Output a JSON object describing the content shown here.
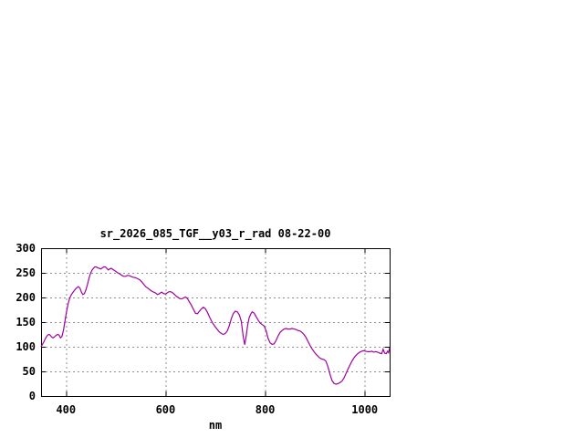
{
  "window": {
    "background_color": "#ffffff"
  },
  "chart": {
    "border_color": "#000000",
    "grid_color": "#909090",
    "text_color": "#000000"
  },
  "chart_data": {
    "type": "line",
    "title": "sr_2026_085_TGF__y03_r_rad 08-22-00",
    "xlabel": "nm",
    "ylabel": "",
    "xlim": [
      350,
      1050
    ],
    "ylim": [
      0,
      300
    ],
    "xticks": [
      400,
      600,
      800,
      1000
    ],
    "yticks": [
      0,
      50,
      100,
      150,
      200,
      250,
      300
    ],
    "grid": true,
    "legend": false,
    "series_color": "#a000a0",
    "points": [
      [
        350,
        100
      ],
      [
        353,
        105
      ],
      [
        356,
        111
      ],
      [
        359,
        117
      ],
      [
        362,
        122
      ],
      [
        365,
        125
      ],
      [
        368,
        124
      ],
      [
        371,
        120
      ],
      [
        374,
        118
      ],
      [
        377,
        120
      ],
      [
        380,
        123
      ],
      [
        383,
        125
      ],
      [
        386,
        124
      ],
      [
        389,
        118
      ],
      [
        392,
        121
      ],
      [
        395,
        134
      ],
      [
        398,
        152
      ],
      [
        401,
        170
      ],
      [
        404,
        186
      ],
      [
        407,
        197
      ],
      [
        410,
        204
      ],
      [
        413,
        209
      ],
      [
        416,
        213
      ],
      [
        419,
        217
      ],
      [
        422,
        220
      ],
      [
        425,
        222
      ],
      [
        428,
        219
      ],
      [
        431,
        211
      ],
      [
        434,
        206
      ],
      [
        437,
        208
      ],
      [
        440,
        215
      ],
      [
        443,
        226
      ],
      [
        446,
        238
      ],
      [
        449,
        248
      ],
      [
        452,
        255
      ],
      [
        455,
        259
      ],
      [
        458,
        262
      ],
      [
        461,
        262
      ],
      [
        464,
        260
      ],
      [
        467,
        259
      ],
      [
        470,
        258
      ],
      [
        473,
        260
      ],
      [
        476,
        262
      ],
      [
        479,
        262
      ],
      [
        482,
        259
      ],
      [
        485,
        256
      ],
      [
        488,
        258
      ],
      [
        491,
        259
      ],
      [
        494,
        257
      ],
      [
        497,
        255
      ],
      [
        500,
        253
      ],
      [
        504,
        250
      ],
      [
        508,
        248
      ],
      [
        512,
        245
      ],
      [
        516,
        243
      ],
      [
        520,
        243
      ],
      [
        524,
        245
      ],
      [
        528,
        244
      ],
      [
        532,
        242
      ],
      [
        536,
        241
      ],
      [
        540,
        240
      ],
      [
        544,
        238
      ],
      [
        548,
        236
      ],
      [
        552,
        232
      ],
      [
        556,
        227
      ],
      [
        560,
        222
      ],
      [
        564,
        219
      ],
      [
        568,
        216
      ],
      [
        572,
        213
      ],
      [
        576,
        211
      ],
      [
        580,
        209
      ],
      [
        584,
        206
      ],
      [
        588,
        208
      ],
      [
        592,
        211
      ],
      [
        596,
        208
      ],
      [
        600,
        207
      ],
      [
        604,
        210
      ],
      [
        608,
        212
      ],
      [
        612,
        211
      ],
      [
        616,
        208
      ],
      [
        620,
        204
      ],
      [
        624,
        201
      ],
      [
        628,
        198
      ],
      [
        632,
        197
      ],
      [
        636,
        199
      ],
      [
        640,
        201
      ],
      [
        644,
        198
      ],
      [
        648,
        191
      ],
      [
        652,
        184
      ],
      [
        656,
        176
      ],
      [
        660,
        168
      ],
      [
        664,
        167
      ],
      [
        668,
        172
      ],
      [
        672,
        177
      ],
      [
        676,
        180
      ],
      [
        680,
        177
      ],
      [
        684,
        170
      ],
      [
        688,
        161
      ],
      [
        692,
        153
      ],
      [
        696,
        146
      ],
      [
        700,
        140
      ],
      [
        704,
        135
      ],
      [
        708,
        130
      ],
      [
        712,
        127
      ],
      [
        716,
        125
      ],
      [
        720,
        127
      ],
      [
        724,
        132
      ],
      [
        728,
        143
      ],
      [
        732,
        157
      ],
      [
        736,
        167
      ],
      [
        740,
        172
      ],
      [
        744,
        171
      ],
      [
        748,
        165
      ],
      [
        752,
        152
      ],
      [
        756,
        120
      ],
      [
        759,
        104
      ],
      [
        762,
        122
      ],
      [
        765,
        145
      ],
      [
        768,
        159
      ],
      [
        771,
        166
      ],
      [
        774,
        171
      ],
      [
        778,
        168
      ],
      [
        782,
        161
      ],
      [
        786,
        154
      ],
      [
        790,
        148
      ],
      [
        794,
        145
      ],
      [
        798,
        142
      ],
      [
        802,
        132
      ],
      [
        806,
        117
      ],
      [
        810,
        108
      ],
      [
        814,
        105
      ],
      [
        818,
        106
      ],
      [
        822,
        113
      ],
      [
        826,
        122
      ],
      [
        830,
        129
      ],
      [
        834,
        133
      ],
      [
        838,
        136
      ],
      [
        842,
        137
      ],
      [
        846,
        136
      ],
      [
        850,
        136
      ],
      [
        854,
        137
      ],
      [
        858,
        136
      ],
      [
        862,
        135
      ],
      [
        866,
        133
      ],
      [
        870,
        132
      ],
      [
        874,
        129
      ],
      [
        878,
        125
      ],
      [
        882,
        119
      ],
      [
        886,
        111
      ],
      [
        890,
        103
      ],
      [
        894,
        96
      ],
      [
        898,
        90
      ],
      [
        902,
        85
      ],
      [
        906,
        81
      ],
      [
        910,
        77
      ],
      [
        914,
        75
      ],
      [
        918,
        74
      ],
      [
        922,
        71
      ],
      [
        926,
        60
      ],
      [
        930,
        45
      ],
      [
        934,
        32
      ],
      [
        938,
        26
      ],
      [
        942,
        24
      ],
      [
        946,
        25
      ],
      [
        950,
        27
      ],
      [
        954,
        30
      ],
      [
        958,
        36
      ],
      [
        962,
        45
      ],
      [
        966,
        54
      ],
      [
        970,
        62
      ],
      [
        974,
        70
      ],
      [
        978,
        77
      ],
      [
        982,
        82
      ],
      [
        986,
        86
      ],
      [
        990,
        89
      ],
      [
        994,
        91
      ],
      [
        998,
        92
      ],
      [
        1002,
        91
      ],
      [
        1006,
        90
      ],
      [
        1010,
        90
      ],
      [
        1014,
        91
      ],
      [
        1018,
        89
      ],
      [
        1022,
        90
      ],
      [
        1026,
        89
      ],
      [
        1030,
        87
      ],
      [
        1034,
        86
      ],
      [
        1037,
        95
      ],
      [
        1040,
        87
      ],
      [
        1043,
        86
      ],
      [
        1046,
        91
      ],
      [
        1048,
        88
      ],
      [
        1050,
        98
      ]
    ]
  }
}
